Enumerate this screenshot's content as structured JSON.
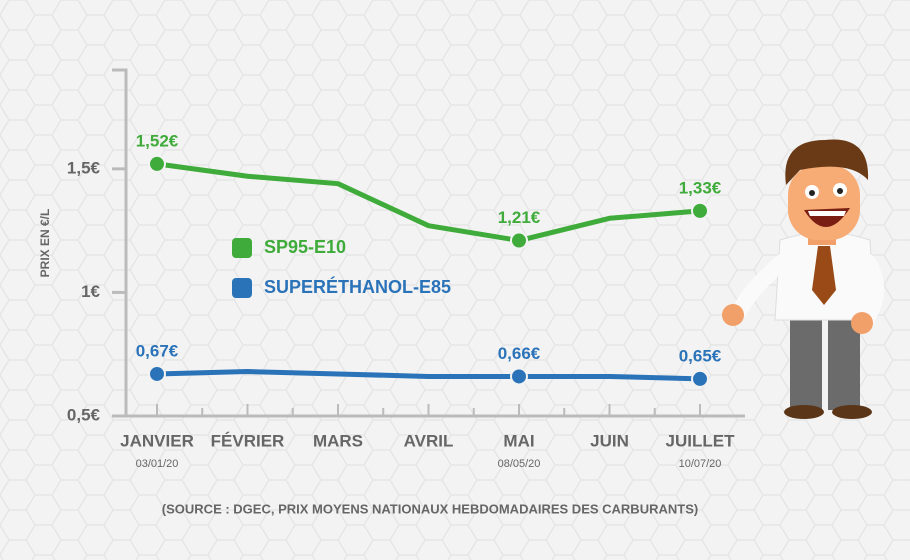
{
  "chart_data": {
    "type": "line",
    "y_label": "PRIX EN €/L",
    "source": "(SOURCE : DGEC, PRIX MOYENS NATIONAUX HEBDOMADAIRES DES CARBURANTS)",
    "categories": [
      "JANVIER",
      "FÉVRIER",
      "MARS",
      "AVRIL",
      "MAI",
      "JUIN",
      "JUILLET"
    ],
    "category_dates": [
      "03/01/20",
      null,
      null,
      null,
      "08/05/20",
      null,
      "10/07/20"
    ],
    "series": [
      {
        "name": "SP95-E10",
        "color": "#3fab3a",
        "values": [
          1.52,
          1.47,
          1.44,
          1.27,
          1.21,
          1.3,
          1.33
        ],
        "value_labels": [
          "1,52€",
          null,
          null,
          null,
          "1,21€",
          null,
          "1,33€"
        ]
      },
      {
        "name": "SUPERÉTHANOL-E85",
        "color": "#2b73b9",
        "values": [
          0.67,
          0.68,
          0.67,
          0.66,
          0.66,
          0.66,
          0.65
        ],
        "value_labels": [
          "0,67€",
          null,
          null,
          null,
          "0,66€",
          null,
          "0,65€"
        ]
      }
    ],
    "ylim": [
      0.5,
      1.9
    ],
    "yticks": [
      {
        "value": 0.5,
        "label": "0,5€"
      },
      {
        "value": 1,
        "label": "1€"
      },
      {
        "value": 1.5,
        "label": "1,5€"
      }
    ]
  }
}
